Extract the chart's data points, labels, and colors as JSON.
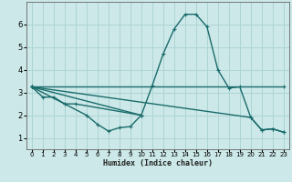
{
  "xlabel": "Humidex (Indice chaleur)",
  "xlim": [
    -0.5,
    23.5
  ],
  "ylim": [
    0.5,
    7.0
  ],
  "bg_color": "#cce8e8",
  "grid_color": "#aed4d4",
  "line_color": "#1a6b6b",
  "line1": {
    "x": [
      0,
      1,
      2,
      3,
      4,
      10
    ],
    "y": [
      3.25,
      2.8,
      2.8,
      2.5,
      2.5,
      2.0
    ]
  },
  "line2": {
    "x": [
      0,
      3,
      5,
      6,
      7,
      8,
      9,
      10
    ],
    "y": [
      3.25,
      2.5,
      2.0,
      1.6,
      1.3,
      1.45,
      1.5,
      2.0
    ]
  },
  "line3": {
    "x": [
      0,
      10,
      11,
      12,
      13,
      14,
      15,
      16,
      17,
      18,
      19,
      20,
      21,
      22,
      23
    ],
    "y": [
      3.25,
      2.0,
      3.3,
      4.7,
      5.8,
      6.45,
      6.45,
      5.9,
      4.0,
      3.2,
      3.25,
      1.9,
      1.35,
      1.4,
      1.25
    ]
  },
  "line4": {
    "x": [
      0,
      23
    ],
    "y": [
      3.25,
      3.25
    ]
  },
  "line5": {
    "x": [
      0,
      20,
      21,
      22,
      23
    ],
    "y": [
      3.25,
      1.9,
      1.35,
      1.4,
      1.25
    ]
  },
  "xticks": [
    0,
    1,
    2,
    3,
    4,
    5,
    6,
    7,
    8,
    9,
    10,
    11,
    12,
    13,
    14,
    15,
    16,
    17,
    18,
    19,
    20,
    21,
    22,
    23
  ],
  "yticks": [
    1,
    2,
    3,
    4,
    5,
    6
  ],
  "marker": "+",
  "markersize": 3.5,
  "linewidth": 1.0
}
